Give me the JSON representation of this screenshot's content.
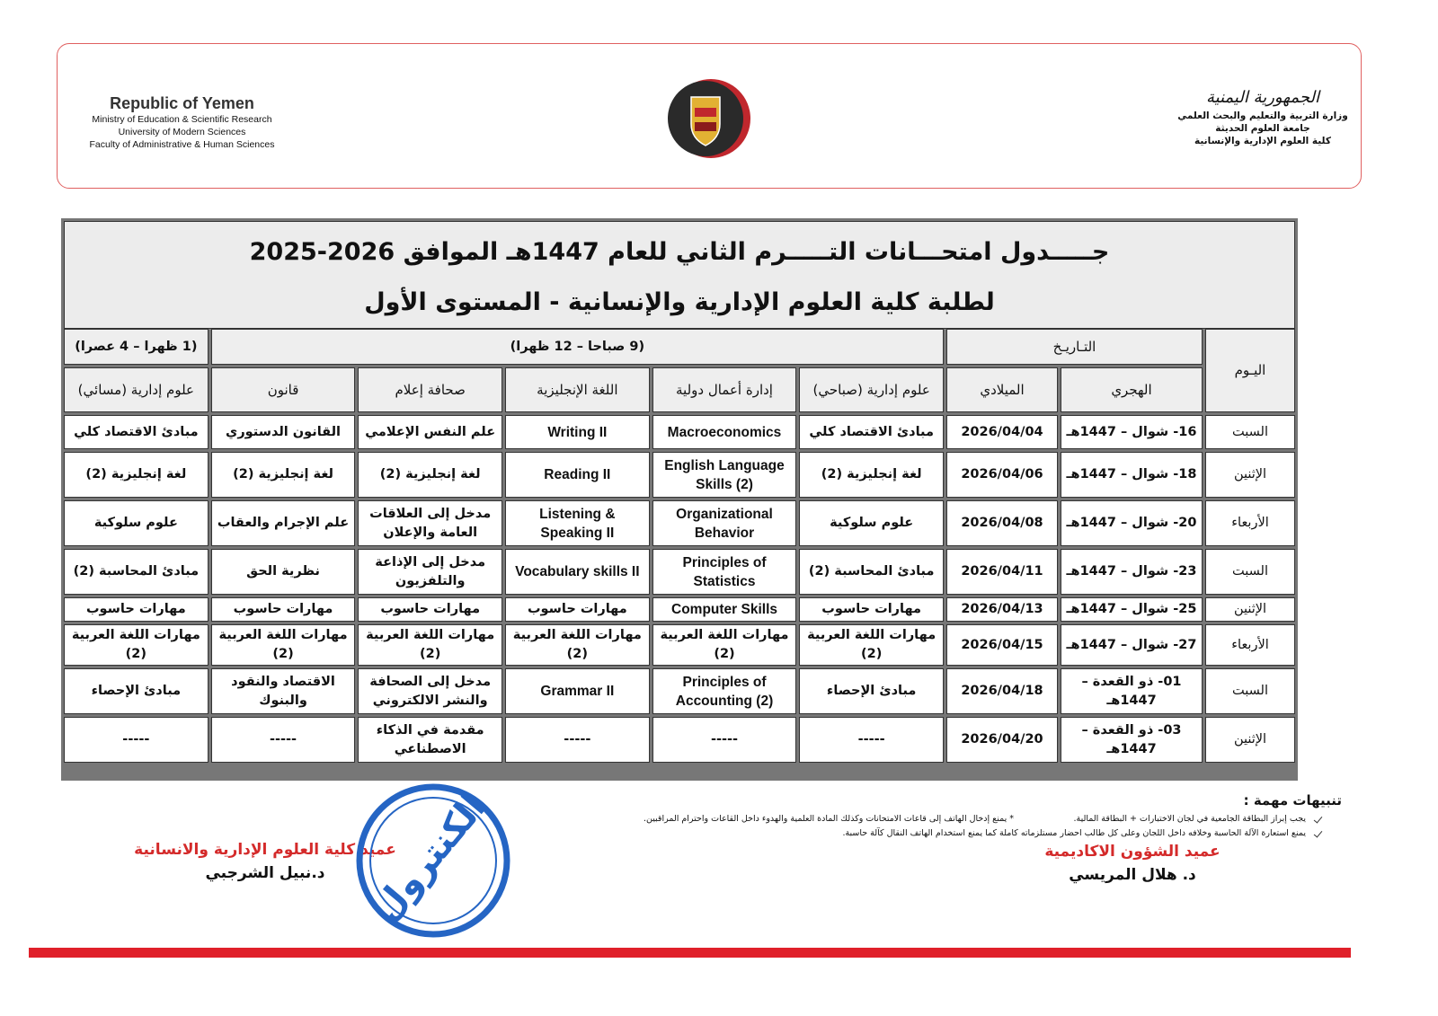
{
  "header": {
    "left": [
      "Republic of Yemen",
      "Ministry of Education & Scientific Research",
      "University of Modern Sciences",
      "Faculty of Administrative & Human Sciences"
    ],
    "right": {
      "emblem": "الجمهورية اليمنية",
      "lines": [
        "وزارة التربية والتعليم والبحث العلمي",
        "جامعة العلوم الحديثة",
        "كلية العلوم الإدارية والإنسانية"
      ]
    }
  },
  "title": {
    "line1": "جـــــدول امتحـــانات التـــــرم الثاني للعام 1447هـ الموافق 2026-2025",
    "line2": "لطلبة كلية العلوم الإدارية والإنسانية - المستوى الأول"
  },
  "table": {
    "group_headers": {
      "day": "اليـوم",
      "date": "التـاريـخ",
      "morning": "(9 صباحا – 12 ظهرا)",
      "evening": "(1 ظهرا – 4 عصرا)"
    },
    "sub_headers": [
      "الهجري",
      "الميلادي",
      "علوم إدارية (صباحي)",
      "إدارة أعمال دولية",
      "اللغة الإنجليزية",
      "صحافة إعلام",
      "قانون",
      "علوم إدارية (مسائي)"
    ],
    "rows": [
      [
        "السبت",
        "16- شوال – 1447هـ",
        "2026/04/04",
        "مبادئ الاقتصاد كلي",
        "Macroeconomics",
        "Writing II",
        "علم النفس الإعلامي",
        "القانون الدستوري",
        "مبادئ الاقتصاد كلي"
      ],
      [
        "الإثنين",
        "18- شوال – 1447هـ",
        "2026/04/06",
        "لغة إنجليزية (2)",
        "English Language Skills (2)",
        "Reading II",
        "لغة إنجليزية (2)",
        "لغة إنجليزية (2)",
        "لغة إنجليزية (2)"
      ],
      [
        "الأربعاء",
        "20- شوال – 1447هـ",
        "2026/04/08",
        "علوم سلوكية",
        "Organizational Behavior",
        "Listening & Speaking II",
        "مدخل إلى العلاقات العامة والإعلان",
        "علم الإجرام والعقاب",
        "علوم سلوكية"
      ],
      [
        "السبت",
        "23- شوال – 1447هـ",
        "2026/04/11",
        "مبادئ المحاسبة (2)",
        "Principles of Statistics",
        "Vocabulary skills II",
        "مدخل إلى الإذاعة والتلفزيون",
        "نظرية الحق",
        "مبادئ المحاسبة (2)"
      ],
      [
        "الإثنين",
        "25- شوال – 1447هـ",
        "2026/04/13",
        "مهارات حاسوب",
        "Computer Skills",
        "مهارات حاسوب",
        "مهارات حاسوب",
        "مهارات حاسوب",
        "مهارات حاسوب"
      ],
      [
        "الأربعاء",
        "27- شوال – 1447هـ",
        "2026/04/15",
        "مهارات اللغة العربية (2)",
        "مهارات اللغة العربية (2)",
        "مهارات اللغة العربية (2)",
        "مهارات اللغة العربية (2)",
        "مهارات اللغة العربية (2)",
        "مهارات اللغة العربية (2)"
      ],
      [
        "السبت",
        "01- ذو القعدة – 1447هـ",
        "2026/04/18",
        "مبادئ الإحصاء",
        "Principles of Accounting (2)",
        "Grammar II",
        "مدخل إلى الصحافة والنشر الالكتروني",
        "الاقتصاد والنقود والبنوك",
        "مبادئ الإحصاء"
      ],
      [
        "الإثنين",
        "03- ذو القعدة – 1447هـ",
        "2026/04/20",
        "-----",
        "-----",
        "-----",
        "مقدمة في الذكاء الاصطناعي",
        "-----",
        "-----"
      ]
    ]
  },
  "notes": {
    "heading": "تنبيهات مهمة :",
    "items": [
      "يجب إبراز البطاقة الجامعية في لجان الاختبارات + البطاقة المالية.",
      "* يمنع إدخال الهاتف إلى قاعات الامتحانات وكذلك المادة العلمية والهدوء داخل القاعات واحترام المراقبين.",
      "يمنع استعارة الآلة الحاسبة وخلافه داخل اللجان وعلى كل طالب احضار مستلزماته كاملة كما يمنع استخدام الهاتف النقال كآلة حاسبة."
    ]
  },
  "signatures": [
    {
      "title": "عميد الشؤون الاكاديمية",
      "name": "د. هلال المريسي"
    },
    {
      "title": "عميد كلية العلوم الإدارية والانسانية",
      "name": "د.نبيل الشرجبي"
    }
  ],
  "stamp": "الكنترول"
}
